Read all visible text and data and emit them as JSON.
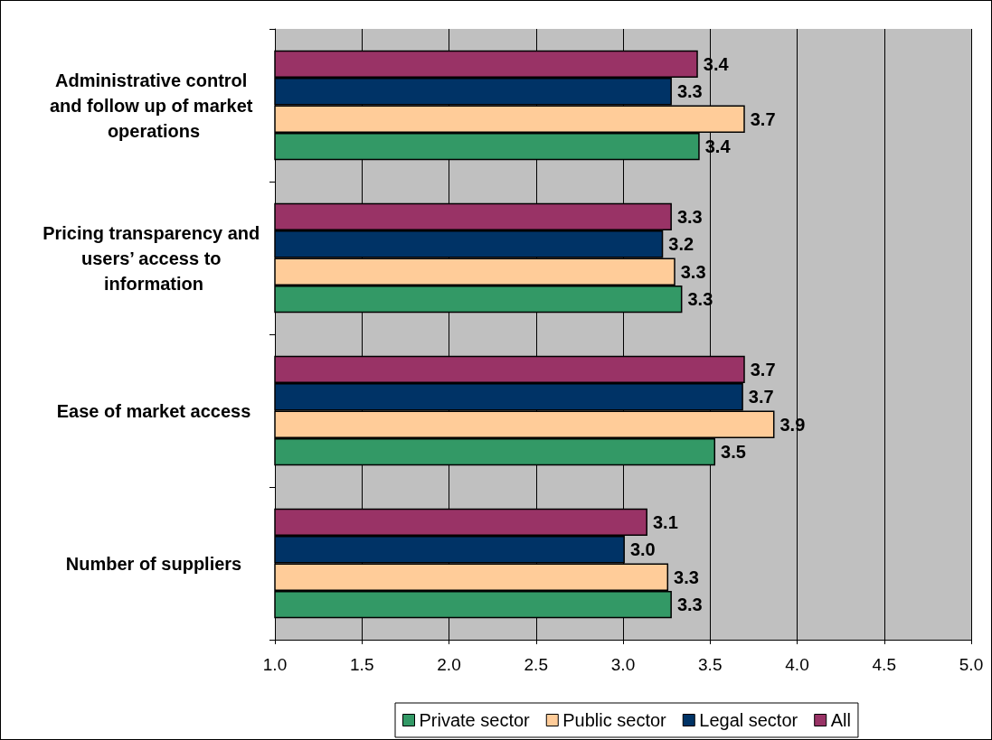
{
  "chart_data": {
    "type": "bar",
    "orientation": "horizontal",
    "categories": [
      "Administrative control and follow up of market operations",
      "Pricing transparency and users’ access to information",
      "Ease of market access",
      "Number of suppliers"
    ],
    "series": [
      {
        "name": "Private sector",
        "color": "#339966",
        "values": [
          3.44,
          3.34,
          3.53,
          3.28
        ],
        "value_labels": [
          "3.4",
          "3.3",
          "3.5",
          "3.3"
        ]
      },
      {
        "name": "Public sector",
        "color": "#ffcc99",
        "values": [
          3.7,
          3.3,
          3.87,
          3.26
        ],
        "value_labels": [
          "3.7",
          "3.3",
          "3.9",
          "3.3"
        ]
      },
      {
        "name": "Legal sector",
        "color": "#003366",
        "values": [
          3.28,
          3.23,
          3.69,
          3.01
        ],
        "value_labels": [
          "3.3",
          "3.2",
          "3.7",
          "3.0"
        ]
      },
      {
        "name": "All",
        "color": "#993366",
        "values": [
          3.43,
          3.28,
          3.7,
          3.14
        ],
        "value_labels": [
          "3.4",
          "3.3",
          "3.7",
          "3.1"
        ]
      }
    ],
    "xlim": [
      1,
      5
    ],
    "xticks": [
      {
        "value": 1,
        "label": "1.0"
      },
      1.5,
      {
        "value": 2,
        "label": "2.0"
      },
      2.5,
      {
        "value": 3,
        "label": "3.0"
      },
      3.5,
      {
        "value": 4,
        "label": "4.0"
      },
      4.5,
      {
        "value": 5,
        "label": "5.0"
      }
    ],
    "grid": "x",
    "legend": "bottom"
  }
}
